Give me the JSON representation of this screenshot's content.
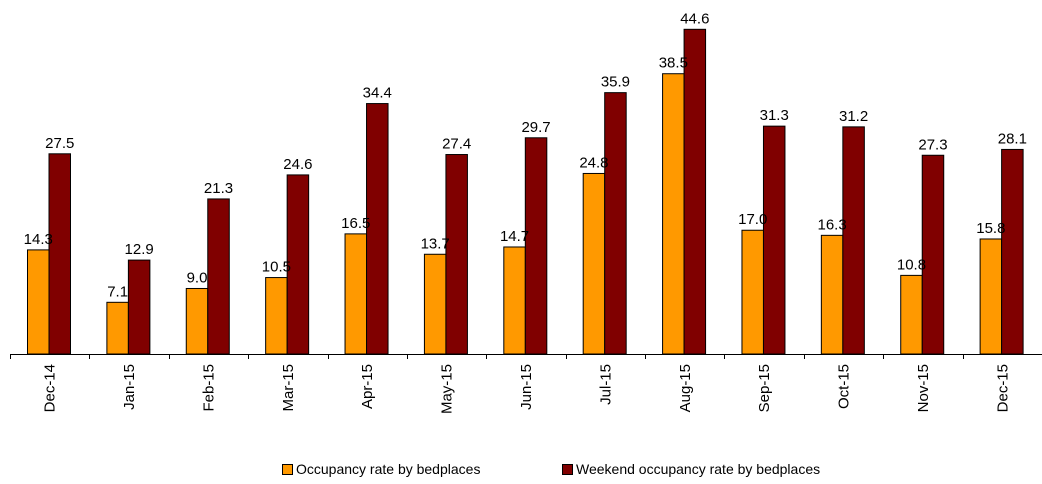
{
  "chart_data": {
    "type": "bar",
    "categories": [
      "Dec-14",
      "Jan-15",
      "Feb-15",
      "Mar-15",
      "Apr-15",
      "May-15",
      "Jun-15",
      "Jul-15",
      "Aug-15",
      "Sep-15",
      "Oct-15",
      "Nov-15",
      "Dec-15"
    ],
    "series": [
      {
        "name": "Occupancy rate by bedplaces",
        "color": "#FF9900",
        "values": [
          14.3,
          7.1,
          9.0,
          10.5,
          16.5,
          13.7,
          14.7,
          24.8,
          38.5,
          17.0,
          16.3,
          10.8,
          15.8
        ]
      },
      {
        "name": "Weekend occupancy rate by bedplaces",
        "color": "#800000",
        "values": [
          27.5,
          12.9,
          21.3,
          24.6,
          34.4,
          27.4,
          29.7,
          35.9,
          44.6,
          31.3,
          31.2,
          27.3,
          28.1
        ]
      }
    ],
    "data_label_decimals": 1,
    "ylim": [
      0,
      45
    ],
    "y_axis_visible": false,
    "grid": false,
    "legend": "bottom"
  }
}
